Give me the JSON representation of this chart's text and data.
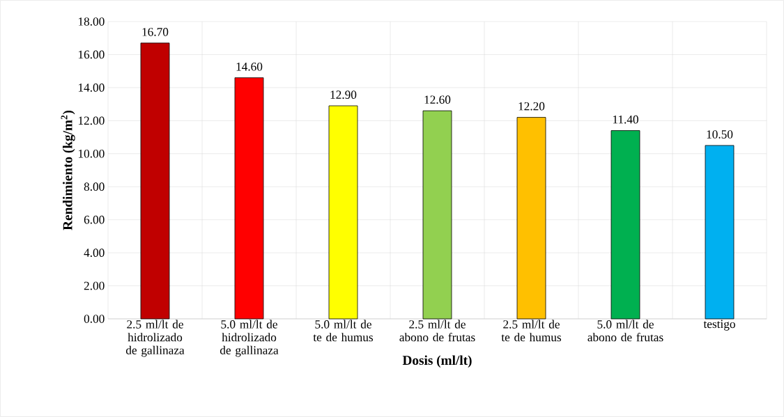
{
  "chart_data": {
    "type": "bar",
    "xlabel": "Dosis (ml/lt)",
    "ylabel": "Rendimiento (kg/m$^{2}$)",
    "categories": [
      "2.5 ml/lt de hidrolizado de gallinaza",
      "5.0 ml/lt de hidrolizado de gallinaza",
      "5.0 ml/lt de te de humus",
      "2.5 ml/lt de abono de frutas",
      "2.5 ml/lt de te de humus",
      "5.0 ml/lt de abono de frutas",
      "testigo"
    ],
    "values": [
      16.7,
      14.6,
      12.9,
      12.6,
      12.2,
      11.4,
      10.5
    ],
    "value_labels": [
      "16.70",
      "14.60",
      "12.90",
      "12.60",
      "12.20",
      "11.40",
      "10.50"
    ],
    "colors": [
      "#c00000",
      "#ff0000",
      "#ffff00",
      "#92d050",
      "#ffc000",
      "#00b050",
      "#00b0f0"
    ],
    "ylim": [
      0,
      18
    ],
    "yticks": [
      {
        "value": 0,
        "label": "0.00"
      },
      {
        "value": 2,
        "label": "2.00"
      },
      {
        "value": 4,
        "label": "4.00"
      },
      {
        "value": 6,
        "label": "6.00"
      },
      {
        "value": 8,
        "label": "8.00"
      },
      {
        "value": 10,
        "label": "10.00"
      },
      {
        "value": 12,
        "label": "12.00"
      },
      {
        "value": 14,
        "label": "14.00"
      },
      {
        "value": 16,
        "label": "16.00"
      },
      {
        "value": 18,
        "label": "18.00"
      }
    ],
    "grid": true
  }
}
